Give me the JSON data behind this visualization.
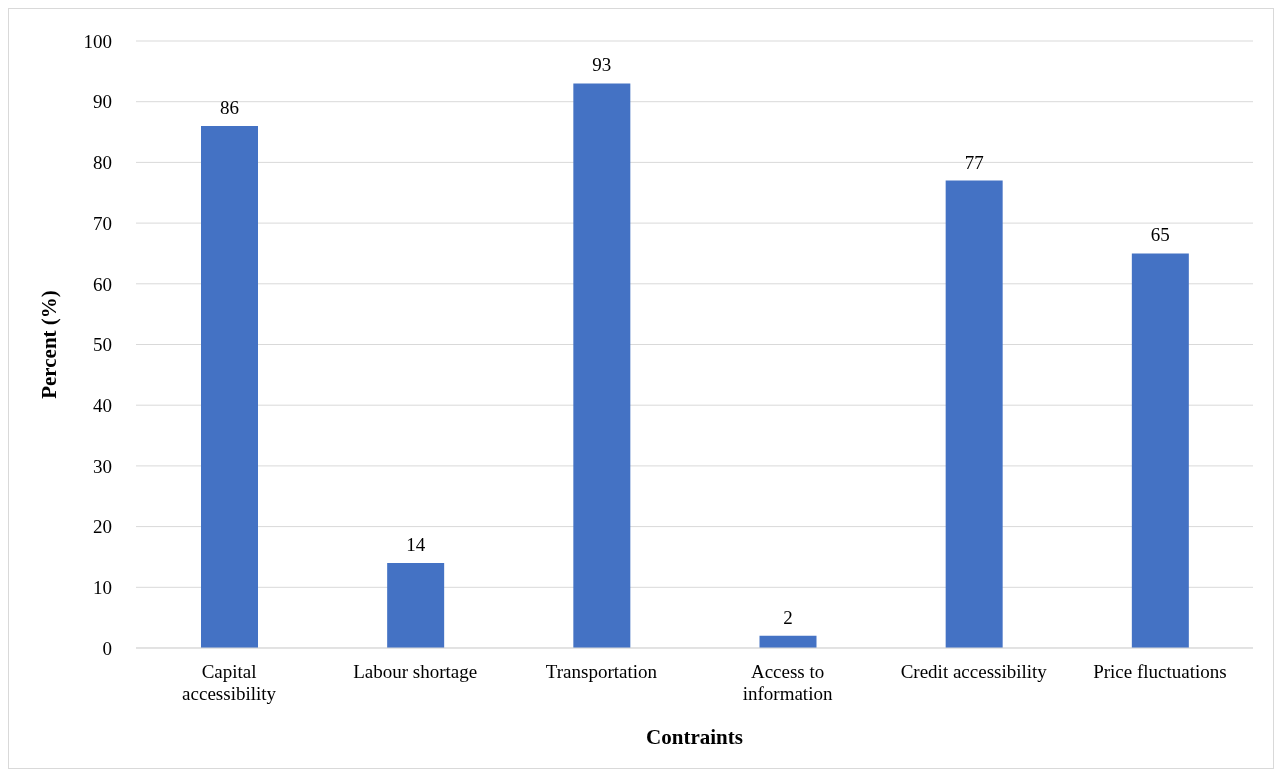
{
  "chart_data": {
    "type": "bar",
    "xlabel": "Contraints",
    "ylabel": "Percent (%)",
    "categories": [
      "Capital accessibility",
      "Labour shortage",
      "Transportation",
      "Access to information",
      "Credit accessibility",
      "Price fluctuations"
    ],
    "values": [
      86,
      14,
      93,
      2,
      77,
      65
    ],
    "color": "#4472c4",
    "ylim": [
      0,
      100
    ],
    "yticks": [
      0,
      10,
      20,
      30,
      40,
      50,
      60,
      70,
      80,
      90,
      100
    ],
    "grid": "y",
    "data_labels": true
  }
}
